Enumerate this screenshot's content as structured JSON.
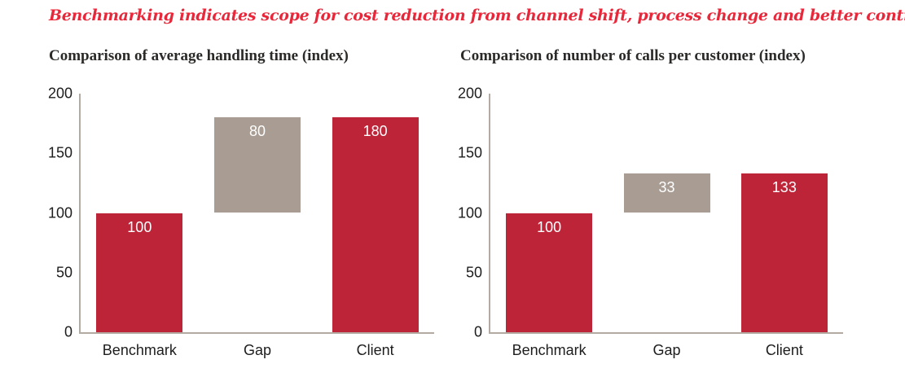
{
  "title": "Benchmarking indicates scope for cost reduction from channel shift, process change and better control of AHT",
  "colors": {
    "title_red": "#e8283a",
    "bar_red": "#be2438",
    "bar_gray": "#a89c93",
    "axis_line": "#b3aaa2",
    "tick_text": "#1d1d1d",
    "bar_label_text": "#ffffff"
  },
  "chart_data": [
    {
      "type": "bar",
      "title": "Comparison of average handling time (index)",
      "categories": [
        "Benchmark",
        "Gap",
        "Client"
      ],
      "series": [
        {
          "name": "Average handling time index",
          "values": [
            100,
            80,
            180
          ]
        }
      ],
      "bars": [
        {
          "label": "Benchmark",
          "value": 100,
          "base": 0,
          "display": "100",
          "color_key": "bar_red"
        },
        {
          "label": "Gap",
          "value": 80,
          "base": 100,
          "display": "80",
          "color_key": "bar_gray"
        },
        {
          "label": "Client",
          "value": 180,
          "base": 0,
          "display": "180",
          "color_key": "bar_red"
        }
      ],
      "xlabel": "",
      "ylabel": "",
      "ylim": [
        0,
        200
      ],
      "yticks": [
        0,
        50,
        100,
        150,
        200
      ],
      "grid": "off",
      "legend": "none"
    },
    {
      "type": "bar",
      "title": "Comparison of number of calls per customer (index)",
      "categories": [
        "Benchmark",
        "Gap",
        "Client"
      ],
      "series": [
        {
          "name": "Calls per customer index",
          "values": [
            100,
            33,
            133
          ]
        }
      ],
      "bars": [
        {
          "label": "Benchmark",
          "value": 100,
          "base": 0,
          "display": "100",
          "color_key": "bar_red"
        },
        {
          "label": "Gap",
          "value": 33,
          "base": 100,
          "display": "33",
          "color_key": "bar_gray"
        },
        {
          "label": "Client",
          "value": 133,
          "base": 0,
          "display": "133",
          "color_key": "bar_red"
        }
      ],
      "xlabel": "",
      "ylabel": "",
      "ylim": [
        0,
        200
      ],
      "yticks": [
        0,
        50,
        100,
        150,
        200
      ],
      "grid": "off",
      "legend": "none"
    }
  ]
}
